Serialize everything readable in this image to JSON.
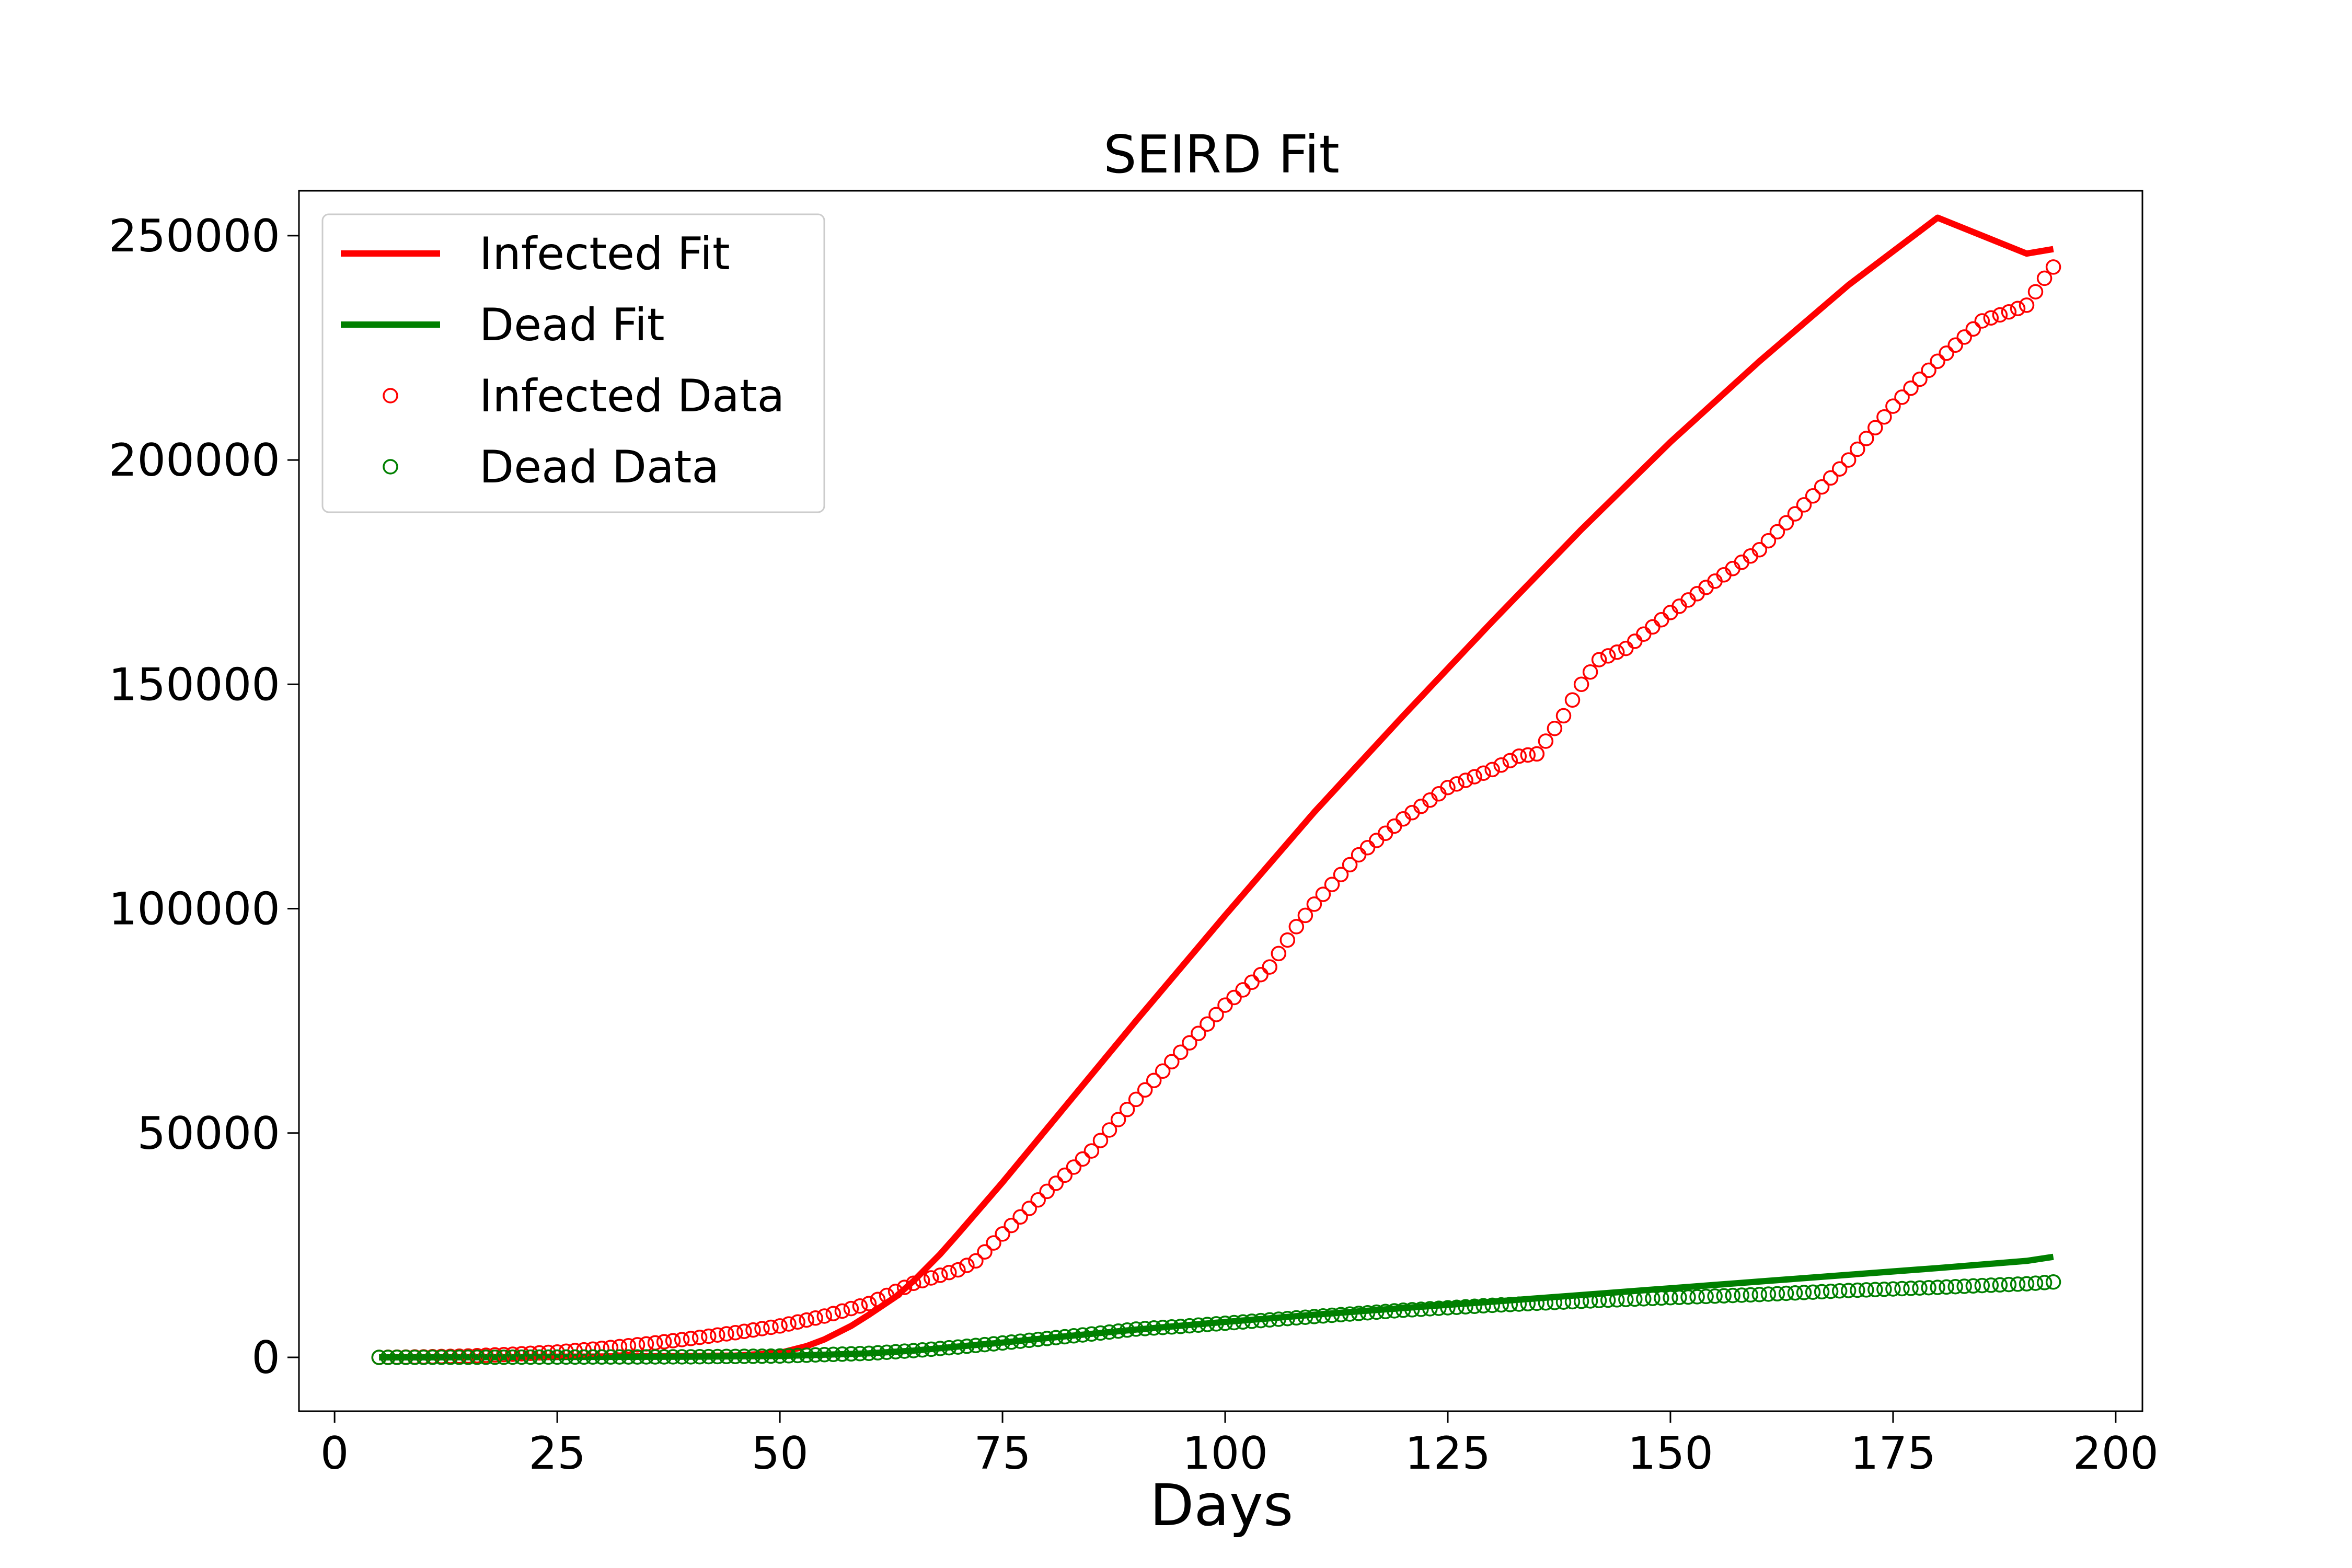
{
  "chart_data": {
    "type": "line",
    "title": "SEIRD Fit",
    "xlabel": "Days",
    "ylabel": "",
    "xlim": [
      -4,
      203
    ],
    "ylim": [
      -12000,
      260000
    ],
    "xticks": [
      0,
      25,
      50,
      75,
      100,
      125,
      150,
      175,
      200
    ],
    "yticks": [
      0,
      50000,
      100000,
      150000,
      200000,
      250000
    ],
    "grid": false,
    "legend_position": "top-left",
    "colors": {
      "infected": "#ff0000",
      "dead": "#008000"
    },
    "series": [
      {
        "name": "Infected Fit",
        "kind": "line",
        "color": "#ff0000",
        "x": [
          5,
          20,
          30,
          40,
          45,
          50,
          53,
          55,
          58,
          60,
          63,
          65,
          68,
          70,
          75,
          80,
          90,
          100,
          110,
          120,
          130,
          140,
          150,
          160,
          170,
          180,
          190,
          193
        ],
        "y": [
          0,
          100,
          200,
          300,
          400,
          1000,
          2500,
          4000,
          7000,
          9500,
          13500,
          17000,
          23000,
          27500,
          39000,
          51000,
          75000,
          98500,
          121500,
          143000,
          164000,
          184500,
          204000,
          222000,
          239000,
          254000,
          246000,
          247000
        ]
      },
      {
        "name": "Dead Fit",
        "kind": "line",
        "color": "#008000",
        "x": [
          5,
          20,
          40,
          50,
          60,
          65,
          70,
          75,
          80,
          90,
          100,
          110,
          120,
          130,
          140,
          150,
          160,
          170,
          180,
          190,
          193
        ],
        "y": [
          0,
          50,
          150,
          300,
          900,
          1500,
          2400,
          3300,
          4300,
          6200,
          7900,
          9500,
          11000,
          12400,
          13900,
          15400,
          16900,
          18400,
          19900,
          21500,
          22400
        ]
      },
      {
        "name": "Infected Data",
        "kind": "scatter",
        "color": "#ff0000",
        "x": [
          5,
          10,
          15,
          20,
          25,
          30,
          35,
          40,
          45,
          50,
          55,
          60,
          65,
          70,
          72,
          75,
          80,
          85,
          88,
          90,
          95,
          100,
          105,
          108,
          110,
          115,
          120,
          125,
          130,
          133,
          135,
          138,
          140,
          142,
          145,
          150,
          155,
          160,
          163,
          165,
          170,
          175,
          180,
          185,
          188,
          190,
          192,
          193
        ],
        "y": [
          0,
          100,
          300,
          700,
          1200,
          2000,
          3000,
          4200,
          5500,
          7000,
          9200,
          12000,
          16500,
          19500,
          21500,
          27500,
          37000,
          46000,
          53000,
          57500,
          68000,
          78500,
          87000,
          96000,
          101000,
          112000,
          120000,
          127000,
          131000,
          134000,
          134500,
          143000,
          150000,
          155500,
          158000,
          166000,
          173000,
          180000,
          186000,
          190000,
          200000,
          212000,
          222000,
          231000,
          233000,
          234500,
          240500,
          243000
        ]
      },
      {
        "name": "Dead Data",
        "kind": "scatter",
        "color": "#008000",
        "x": [
          5,
          20,
          40,
          50,
          60,
          65,
          70,
          75,
          80,
          85,
          90,
          95,
          100,
          110,
          120,
          130,
          140,
          150,
          160,
          170,
          180,
          190,
          193
        ],
        "y": [
          0,
          40,
          120,
          300,
          900,
          1500,
          2300,
          3200,
          4200,
          5200,
          6300,
          6900,
          7600,
          9100,
          10500,
          11600,
          12500,
          13300,
          14000,
          14900,
          15600,
          16400,
          16800
        ]
      }
    ],
    "legend": [
      {
        "label": "Infected Fit",
        "marker": "line",
        "color": "#ff0000"
      },
      {
        "label": "Dead Fit",
        "marker": "line",
        "color": "#008000"
      },
      {
        "label": "Infected Data",
        "marker": "circle",
        "color": "#ff0000"
      },
      {
        "label": "Dead Data",
        "marker": "circle",
        "color": "#008000"
      }
    ]
  }
}
